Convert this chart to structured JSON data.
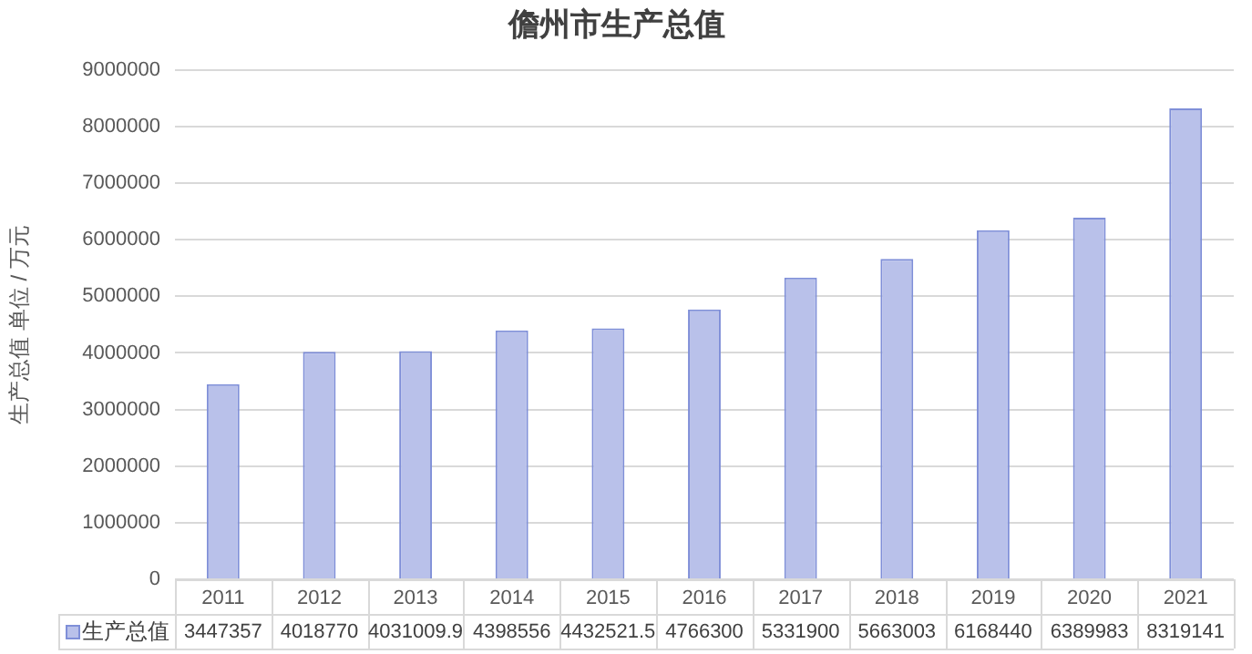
{
  "chart_data": {
    "type": "bar",
    "title": "儋州市生产总值",
    "ylabel": "生产总值 单位 / 万元",
    "categories": [
      "2011",
      "2012",
      "2013",
      "2014",
      "2015",
      "2016",
      "2017",
      "2018",
      "2019",
      "2020",
      "2021"
    ],
    "series": [
      {
        "name": "生产总值",
        "color": "#b9c1ea",
        "values": [
          3447357,
          4018770,
          4031009.9,
          4398556,
          4432521.5,
          4766300,
          5331900,
          5663003,
          6168440,
          6389983,
          8319141
        ]
      }
    ],
    "ylim": [
      0,
      9000000
    ],
    "yticks": [
      0,
      1000000,
      2000000,
      3000000,
      4000000,
      5000000,
      6000000,
      7000000,
      8000000,
      9000000
    ],
    "grid": "y",
    "legend": "bottom",
    "data_labels": true
  }
}
